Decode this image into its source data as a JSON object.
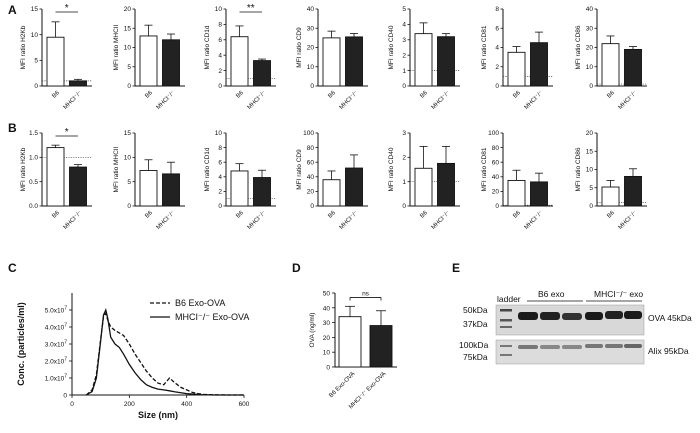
{
  "panels": {
    "A": "A",
    "B": "B",
    "C": "C",
    "D": "D",
    "E": "E"
  },
  "colors": {
    "control": "#ffffff",
    "knockout": "#222222",
    "axis": "#111111"
  },
  "categories": [
    "B6",
    "MHCI⁻/⁻"
  ],
  "chart_data": [
    {
      "type": "bar",
      "panel": "A",
      "ylabel": "MFI ratio H2Kb",
      "categories": [
        "B6",
        "MHCI-/-"
      ],
      "values": [
        9.5,
        1.0
      ],
      "errors": [
        3.0,
        0.3
      ],
      "yticks": [
        "0",
        "5",
        "10",
        "15"
      ],
      "ylim": [
        0,
        15
      ],
      "ref": 1,
      "sig": "*"
    },
    {
      "type": "bar",
      "panel": "A",
      "ylabel": "MFI ratio MHCII",
      "categories": [
        "B6",
        "MHCI-/-"
      ],
      "values": [
        13,
        12
      ],
      "errors": [
        2.8,
        1.5
      ],
      "yticks": [
        "0",
        "5",
        "10",
        "15",
        "20"
      ],
      "ylim": [
        0,
        20
      ],
      "ref": null,
      "sig": ""
    },
    {
      "type": "bar",
      "panel": "A",
      "ylabel": "MFI ratio CD1d",
      "categories": [
        "B6",
        "MHCI-/-"
      ],
      "values": [
        6.4,
        3.3
      ],
      "errors": [
        1.4,
        0.2
      ],
      "yticks": [
        "0",
        "2",
        "4",
        "6",
        "8",
        "10"
      ],
      "ylim": [
        0,
        10
      ],
      "ref": 1,
      "sig": "**"
    },
    {
      "type": "bar",
      "panel": "A",
      "ylabel": "MFI ratio CD9",
      "categories": [
        "B6",
        "MHCI-/-"
      ],
      "values": [
        25,
        25.5
      ],
      "errors": [
        3.5,
        1.8
      ],
      "yticks": [
        "0",
        "10",
        "20",
        "30",
        "40"
      ],
      "ylim": [
        0,
        40
      ],
      "ref": null,
      "sig": ""
    },
    {
      "type": "bar",
      "panel": "A",
      "ylabel": "MFI ratio CD40",
      "categories": [
        "B6",
        "MHCI-/-"
      ],
      "values": [
        3.4,
        3.2
      ],
      "errors": [
        0.7,
        0.2
      ],
      "yticks": [
        "0",
        "1",
        "2",
        "3",
        "4",
        "5"
      ],
      "ylim": [
        0,
        5
      ],
      "ref": 1,
      "sig": ""
    },
    {
      "type": "bar",
      "panel": "A",
      "ylabel": "MFI ratio CD81",
      "categories": [
        "B6",
        "MHCI-/-"
      ],
      "values": [
        3.5,
        4.5
      ],
      "errors": [
        0.6,
        1.1
      ],
      "yticks": [
        "0",
        "2",
        "4",
        "6",
        "8"
      ],
      "ylim": [
        0,
        8
      ],
      "ref": 1,
      "sig": ""
    },
    {
      "type": "bar",
      "panel": "A",
      "ylabel": "MFI ratio CD86",
      "categories": [
        "B6",
        "MHCI-/-"
      ],
      "values": [
        22,
        19
      ],
      "errors": [
        4,
        1.5
      ],
      "yticks": [
        "0",
        "10",
        "20",
        "30",
        "40"
      ],
      "ylim": [
        0,
        40
      ],
      "ref": 1,
      "sig": ""
    },
    {
      "type": "bar",
      "panel": "B",
      "ylabel": "MFI ratio H2Kb",
      "categories": [
        "B6",
        "MHCI-/-"
      ],
      "values": [
        1.2,
        0.8
      ],
      "errors": [
        0.05,
        0.05
      ],
      "yticks": [
        "0.0",
        "0.5",
        "1.0",
        "1.5"
      ],
      "ylim": [
        0,
        1.5
      ],
      "ref": 1,
      "sig": "*"
    },
    {
      "type": "bar",
      "panel": "B",
      "ylabel": "MFI ratio MHCII",
      "categories": [
        "B6",
        "MHCI-/-"
      ],
      "values": [
        7.3,
        6.6
      ],
      "errors": [
        2.2,
        2.4
      ],
      "yticks": [
        "0",
        "5",
        "10",
        "15"
      ],
      "ylim": [
        0,
        15
      ],
      "ref": null,
      "sig": ""
    },
    {
      "type": "bar",
      "panel": "B",
      "ylabel": "MFI ratio CD1d",
      "categories": [
        "B6",
        "MHCI-/-"
      ],
      "values": [
        4.8,
        3.9
      ],
      "errors": [
        1.0,
        1.0
      ],
      "yticks": [
        "0",
        "2",
        "4",
        "6",
        "8",
        "10"
      ],
      "ylim": [
        0,
        10
      ],
      "ref": 1,
      "sig": ""
    },
    {
      "type": "bar",
      "panel": "B",
      "ylabel": "MFI ratio CD9",
      "categories": [
        "B6",
        "MHCI-/-"
      ],
      "values": [
        36,
        52
      ],
      "errors": [
        12,
        18
      ],
      "yticks": [
        "0",
        "20",
        "40",
        "60",
        "80",
        "100"
      ],
      "ylim": [
        0,
        100
      ],
      "ref": null,
      "sig": ""
    },
    {
      "type": "bar",
      "panel": "B",
      "ylabel": "MFI ratio CD40",
      "categories": [
        "B6",
        "MHCI-/-"
      ],
      "values": [
        1.55,
        1.75
      ],
      "errors": [
        0.9,
        0.7
      ],
      "yticks": [
        "0",
        "1",
        "2",
        "3"
      ],
      "ylim": [
        0,
        3
      ],
      "ref": 1,
      "sig": ""
    },
    {
      "type": "bar",
      "panel": "B",
      "ylabel": "MFI ratio CD81",
      "categories": [
        "B6",
        "MHCI-/-"
      ],
      "values": [
        35,
        33
      ],
      "errors": [
        14,
        12
      ],
      "yticks": [
        "0",
        "20",
        "40",
        "60",
        "80",
        "100"
      ],
      "ylim": [
        0,
        100
      ],
      "ref": 1,
      "sig": ""
    },
    {
      "type": "bar",
      "panel": "B",
      "ylabel": "MFI ratio CD86",
      "categories": [
        "B6",
        "MHCI-/-"
      ],
      "values": [
        5.2,
        8.1
      ],
      "errors": [
        1.8,
        2.1
      ],
      "yticks": [
        "0",
        "5",
        "10",
        "15",
        "20"
      ],
      "ylim": [
        0,
        20
      ],
      "ref": 1,
      "sig": ""
    },
    {
      "type": "line",
      "panel": "C",
      "title": "",
      "xlabel": "Size (nm)",
      "ylabel": "Conc. (particles/ml)",
      "xlim": [
        0,
        600
      ],
      "ylim": [
        0,
        60000000
      ],
      "xticks": [
        "0",
        "200",
        "400",
        "600"
      ],
      "yticks": [
        {
          "base": "0",
          "exp": ""
        },
        {
          "base": "1.0x10",
          "exp": "7"
        },
        {
          "base": "2.0x10",
          "exp": "7"
        },
        {
          "base": "3.0x10",
          "exp": "7"
        },
        {
          "base": "4.0x10",
          "exp": "7"
        },
        {
          "base": "5.0x10",
          "exp": "7"
        }
      ],
      "series": [
        {
          "name": "B6 Exo-OVA",
          "style": "dashed",
          "x": [
            50,
            70,
            85,
            100,
            110,
            118,
            125,
            135,
            150,
            165,
            180,
            200,
            220,
            240,
            260,
            280,
            300,
            320,
            340,
            360,
            380,
            400,
            420,
            440,
            460,
            500,
            550,
            600
          ],
          "y": [
            0,
            3000000,
            12000000,
            33000000,
            46000000,
            48000000,
            44000000,
            40000000,
            38000000,
            36500000,
            35000000,
            30000000,
            24000000,
            19000000,
            14000000,
            10000000,
            7000000,
            6000000,
            10000000,
            7000000,
            4500000,
            3000000,
            1500000,
            800000,
            300000,
            100000,
            0,
            0
          ]
        },
        {
          "name": "MHCI⁻/⁻ Exo-OVA",
          "style": "solid",
          "x": [
            50,
            70,
            85,
            100,
            110,
            118,
            125,
            135,
            150,
            165,
            180,
            200,
            220,
            240,
            260,
            280,
            300,
            320,
            340,
            360,
            400,
            450,
            500,
            600
          ],
          "y": [
            0,
            2000000,
            10000000,
            32000000,
            47000000,
            50000000,
            45000000,
            34000000,
            30000000,
            28000000,
            24000000,
            18000000,
            13000000,
            9000000,
            6000000,
            4500000,
            3500000,
            3000000,
            2500000,
            1800000,
            800000,
            200000,
            0,
            0
          ]
        }
      ],
      "legend": "top-right"
    },
    {
      "type": "bar",
      "panel": "D",
      "ylabel": "OVA (ng/ml)",
      "categories": [
        "B6 Exo-OVA",
        "MHCI⁻/⁻ Exo-OVA"
      ],
      "values": [
        34,
        28
      ],
      "errors": [
        7,
        10
      ],
      "yticks": [
        "0",
        "10",
        "20",
        "30",
        "40",
        "50"
      ],
      "ylim": [
        0,
        50
      ],
      "ref": null,
      "sig": "ns"
    }
  ],
  "blot": {
    "ladder": "ladder",
    "group1": "B6 exo",
    "group2": "MHCI⁻/⁻ exo",
    "markers": [
      "50kDa",
      "37kDa",
      "100kDa",
      "75kDa"
    ],
    "band1": "OVA  45kDa",
    "band2": "Alix  95kDa"
  }
}
